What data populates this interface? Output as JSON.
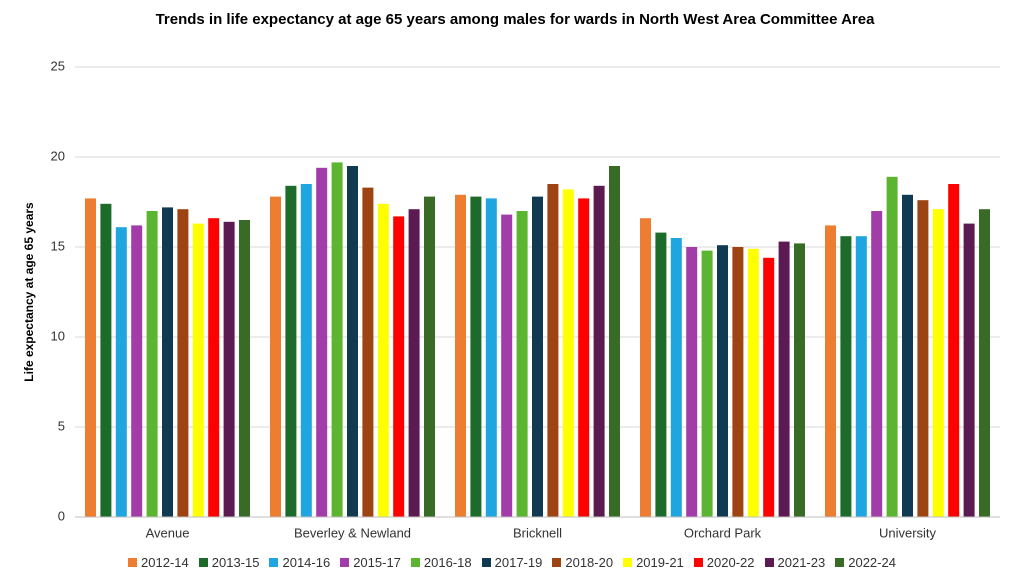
{
  "chart_data": {
    "type": "bar",
    "title": "Trends in life expectancy at  age 65 years among males for wards in North West Area Committee Area",
    "y_label": "Life expectancy at  age 65 years",
    "categories": [
      "Avenue",
      "Beverley & Newland",
      "Bricknell",
      "Orchard Park",
      "University"
    ],
    "ylim": [
      0,
      25
    ],
    "yticks": [
      0,
      5,
      10,
      15,
      20,
      25
    ],
    "grid": true,
    "legend": "bottom",
    "series": [
      {
        "name": "2012-14",
        "color": "#ed7d31",
        "values": [
          17.7,
          17.8,
          17.9,
          16.6,
          16.2
        ]
      },
      {
        "name": "2013-15",
        "color": "#1d6b2b",
        "values": [
          17.4,
          18.4,
          17.8,
          15.8,
          15.6
        ]
      },
      {
        "name": "2014-16",
        "color": "#1fa5e0",
        "values": [
          16.1,
          18.5,
          17.7,
          15.5,
          15.6
        ]
      },
      {
        "name": "2015-17",
        "color": "#a23ca8",
        "values": [
          16.2,
          19.4,
          16.8,
          15.0,
          17.0
        ]
      },
      {
        "name": "2016-18",
        "color": "#5cb531",
        "values": [
          17.0,
          19.7,
          17.0,
          14.8,
          18.9
        ]
      },
      {
        "name": "2017-19",
        "color": "#0f3a52",
        "values": [
          17.2,
          19.5,
          17.8,
          15.1,
          17.9
        ]
      },
      {
        "name": "2018-20",
        "color": "#9e4412",
        "values": [
          17.1,
          18.3,
          18.5,
          15.0,
          17.6
        ]
      },
      {
        "name": "2019-21",
        "color": "#ffff00",
        "values": [
          16.3,
          17.4,
          18.2,
          14.9,
          17.1
        ]
      },
      {
        "name": "2020-22",
        "color": "#ff0000",
        "values": [
          16.6,
          16.7,
          17.7,
          14.4,
          18.5
        ]
      },
      {
        "name": "2021-23",
        "color": "#5c1a52",
        "values": [
          16.4,
          17.1,
          18.4,
          15.3,
          16.3
        ]
      },
      {
        "name": "2022-24",
        "color": "#386b25",
        "values": [
          16.5,
          17.8,
          19.5,
          15.2,
          17.1
        ]
      }
    ]
  }
}
